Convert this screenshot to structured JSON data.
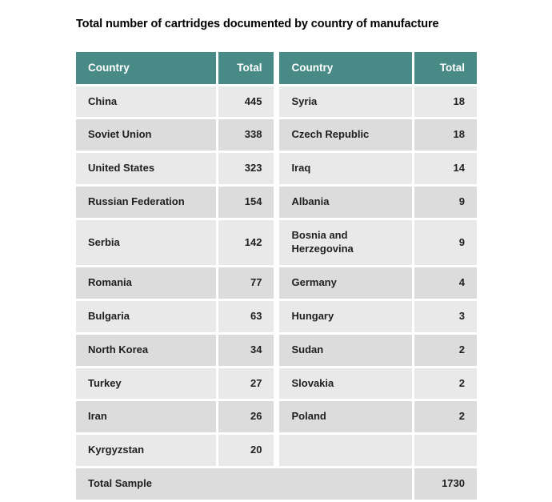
{
  "page": {
    "title": "Total number of cartridges documented by country of manufacture"
  },
  "colors": {
    "header_bg": "#478a86",
    "header_text": "#ffffff",
    "row_bg_light": "#e9e9e9",
    "row_bg_dark": "#dcdcdc",
    "text": "#1f1f1f"
  },
  "chart_data": {
    "type": "table",
    "title": "Total number of cartridges documented by country of manufacture",
    "columns": [
      "Country",
      "Total",
      "Country",
      "Total"
    ],
    "rows": [
      [
        "China",
        445,
        "Syria",
        18
      ],
      [
        "Soviet Union",
        338,
        "Czech Republic",
        18
      ],
      [
        "United States",
        323,
        "Iraq",
        14
      ],
      [
        "Russian Federation",
        154,
        "Albania",
        9
      ],
      [
        "Serbia",
        142,
        "Bosnia and Herzegovina",
        9
      ],
      [
        "Romania",
        77,
        "Germany",
        4
      ],
      [
        "Bulgaria",
        63,
        "Hungary",
        3
      ],
      [
        "North Korea",
        34,
        "Sudan",
        2
      ],
      [
        "Turkey",
        27,
        "Slovakia",
        2
      ],
      [
        "Iran",
        26,
        "Poland",
        2
      ],
      [
        "Kyrgyzstan",
        20,
        "",
        ""
      ]
    ],
    "footer": {
      "label": "Total Sample",
      "value": 1730
    }
  }
}
